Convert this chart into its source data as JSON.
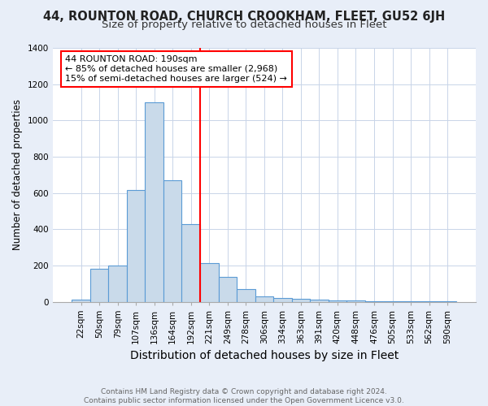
{
  "title": "44, ROUNTON ROAD, CHURCH CROOKHAM, FLEET, GU52 6JH",
  "subtitle": "Size of property relative to detached houses in Fleet",
  "xlabel": "Distribution of detached houses by size in Fleet",
  "ylabel": "Number of detached properties",
  "footnote": "Contains HM Land Registry data © Crown copyright and database right 2024.\nContains public sector information licensed under the Open Government Licence v3.0.",
  "bar_labels": [
    "22sqm",
    "50sqm",
    "79sqm",
    "107sqm",
    "136sqm",
    "164sqm",
    "192sqm",
    "221sqm",
    "249sqm",
    "278sqm",
    "306sqm",
    "334sqm",
    "363sqm",
    "391sqm",
    "420sqm",
    "448sqm",
    "476sqm",
    "505sqm",
    "533sqm",
    "562sqm",
    "590sqm"
  ],
  "bar_values": [
    10,
    180,
    200,
    615,
    1100,
    670,
    430,
    215,
    135,
    70,
    28,
    22,
    14,
    10,
    5,
    5,
    2,
    1,
    1,
    1,
    4
  ],
  "bar_color": "#c9daea",
  "bar_edge_color": "#5b9bd5",
  "vline_index": 6,
  "vline_color": "red",
  "annotation_text": "44 ROUNTON ROAD: 190sqm\n← 85% of detached houses are smaller (2,968)\n15% of semi-detached houses are larger (524) →",
  "annotation_box_color": "white",
  "annotation_box_edge_color": "red",
  "ylim": [
    0,
    1400
  ],
  "yticks": [
    0,
    200,
    400,
    600,
    800,
    1000,
    1200,
    1400
  ],
  "background_color": "#e8eef8",
  "plot_background": "#ffffff",
  "grid_color": "#c8d4e8",
  "title_fontsize": 10.5,
  "subtitle_fontsize": 9.5,
  "xlabel_fontsize": 10,
  "ylabel_fontsize": 8.5,
  "tick_fontsize": 7.5,
  "footnote_fontsize": 6.5
}
